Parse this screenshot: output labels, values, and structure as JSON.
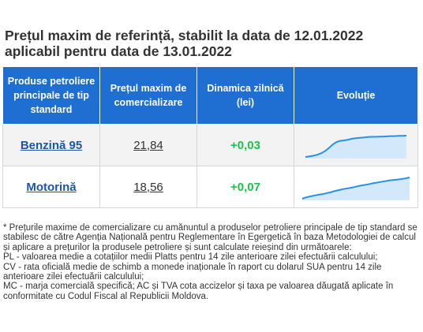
{
  "title": {
    "line1": "Prețul maxim de referință, stabilit la data de 12.01.2022",
    "line2": "aplicabil pentru data de 13.01.2022"
  },
  "table": {
    "headers": {
      "product": "Produse petroliere principale de tip standard",
      "price": "Prețul maxim de comercializare",
      "dynamics": "Dinamica zilnică (lei)",
      "evolution": "Evoluție"
    },
    "rows": [
      {
        "product": "Benzină 95",
        "price": "21,84",
        "dynamics": "+0,03",
        "spark": [
          0.0,
          0.02,
          0.05,
          0.09,
          0.15,
          0.24,
          0.37,
          0.52,
          0.63,
          0.68,
          0.7,
          0.73,
          0.77,
          0.79,
          0.81,
          0.82,
          0.84,
          0.85,
          0.85,
          0.86,
          0.86,
          0.87,
          0.88,
          0.88,
          0.89,
          0.89,
          0.9
        ]
      },
      {
        "product": "Motorină",
        "price": "18,56",
        "dynamics": "+0,07",
        "spark": [
          0.0,
          0.06,
          0.1,
          0.14,
          0.17,
          0.2,
          0.24,
          0.28,
          0.33,
          0.37,
          0.41,
          0.44,
          0.47,
          0.51,
          0.55,
          0.58,
          0.61,
          0.65,
          0.68,
          0.71,
          0.74,
          0.77,
          0.79,
          0.81,
          0.83,
          0.86,
          0.9
        ]
      }
    ]
  },
  "colors": {
    "header_bg": "#1e6fd1",
    "spark_line": "#2a8fe8",
    "spark_fill": "#d3e9fb",
    "positive": "#1bc34a",
    "link": "#1d56a6"
  },
  "notes": {
    "p1": "* Prețurile maxime de comercializare cu amănuntul a produselor petroliere principale de tip standard se stabilesc de către Agenția Națională pentru Reglementare în Egergetică în baza Metodologiei de calcul și aplicare a prețurilor la produsele petroliere și sunt calculate reieșind din următoarele:",
    "p2": "PL - valoarea medie a cotațiilor medii Platts pentru 14 zile anterioare zilei efectuării calculului;",
    "p3": "CV - rata oficială medie de schimb a monede inaționale în raport cu dolarul SUA pentru 14 zile anterioare zilei efectuării calculului;",
    "p4": "MC - marja comercială specifică; AC și TVA cota accizelor și taxa pe valoarea dăugată aplicate în conformitate cu Codul Fiscal al Republicii Moldova."
  }
}
